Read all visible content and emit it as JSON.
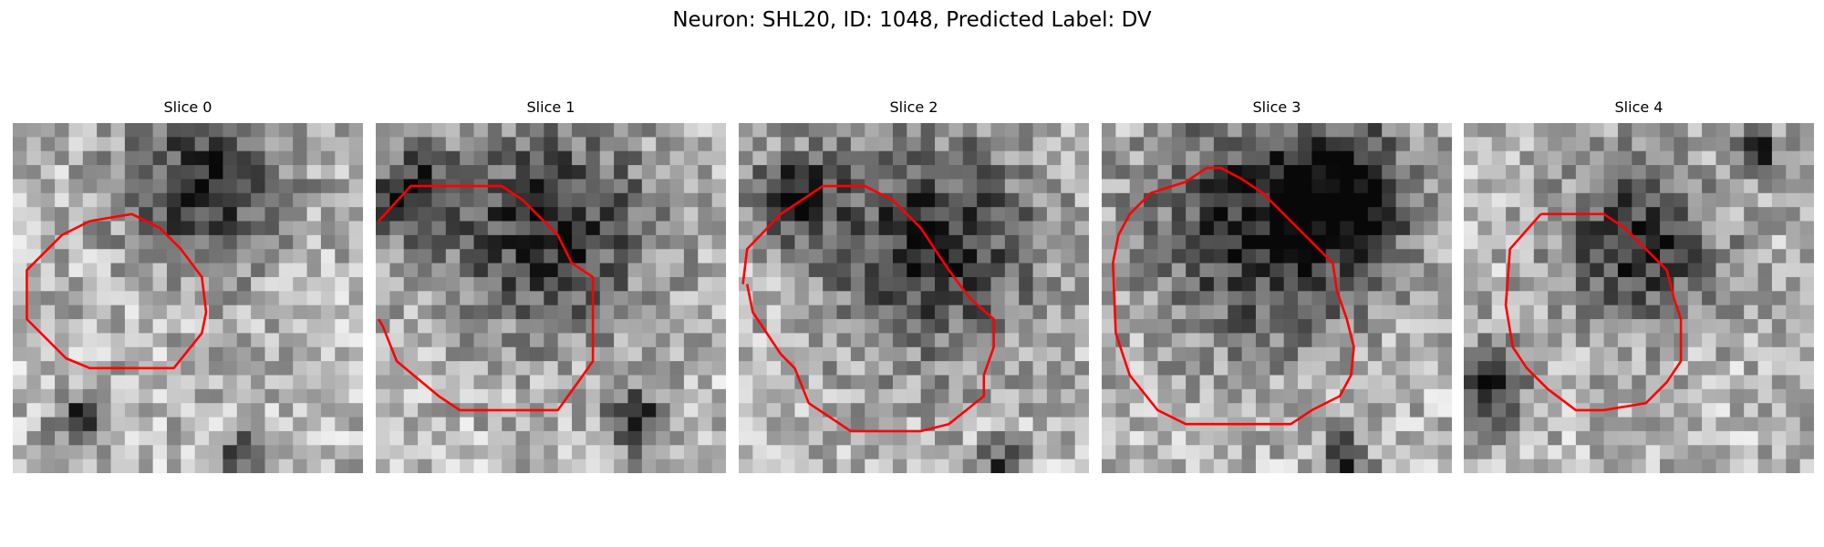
{
  "figure": {
    "title": "Neuron: SHL20, ID: 1048, Predicted Label: DV"
  },
  "panels": [
    {
      "title": "Slice 0",
      "seed": 11,
      "dark_blobs": [
        [
          0.55,
          0.18,
          0.22
        ],
        [
          0.2,
          0.85,
          0.08
        ],
        [
          0.65,
          0.95,
          0.06
        ]
      ]
    },
    {
      "title": "Slice 1",
      "seed": 23,
      "dark_blobs": [
        [
          0.5,
          0.3,
          0.28
        ],
        [
          0.1,
          0.2,
          0.12
        ],
        [
          0.75,
          0.85,
          0.08
        ]
      ]
    },
    {
      "title": "Slice 2",
      "seed": 37,
      "dark_blobs": [
        [
          0.55,
          0.35,
          0.3
        ],
        [
          0.15,
          0.2,
          0.12
        ],
        [
          0.75,
          0.98,
          0.06
        ]
      ]
    },
    {
      "title": "Slice 3",
      "seed": 41,
      "dark_blobs": [
        [
          0.45,
          0.3,
          0.32
        ],
        [
          0.7,
          0.2,
          0.18
        ],
        [
          0.7,
          0.95,
          0.06
        ]
      ]
    },
    {
      "title": "Slice 4",
      "seed": 53,
      "dark_blobs": [
        [
          0.5,
          0.35,
          0.22
        ],
        [
          0.85,
          0.08,
          0.06
        ],
        [
          0.05,
          0.75,
          0.12
        ]
      ]
    }
  ],
  "contour_color": "#ff0000",
  "image_colormap": "gray"
}
